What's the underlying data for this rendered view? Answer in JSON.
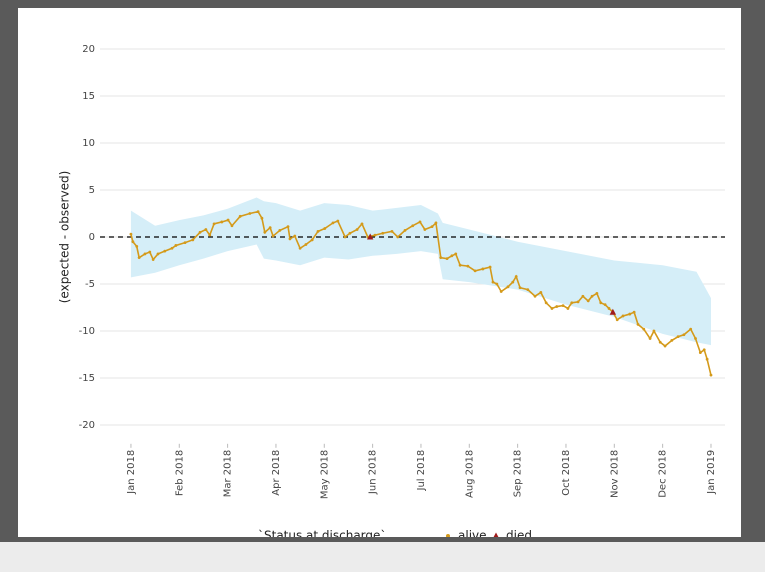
{
  "chart_data": {
    "type": "line",
    "y_label": "(expected - observed)",
    "xlim": [
      -0.64,
      12.29
    ],
    "ylim": [
      -22,
      21.5
    ],
    "grid": true,
    "xticks": [
      {
        "value": 0,
        "label": "Jan 2018"
      },
      {
        "value": 1,
        "label": "Feb 2018"
      },
      {
        "value": 2,
        "label": "Mar 2018"
      },
      {
        "value": 3,
        "label": "Apr 2018"
      },
      {
        "value": 4,
        "label": "May 2018"
      },
      {
        "value": 5,
        "label": "Jun 2018"
      },
      {
        "value": 6,
        "label": "Jul 2018"
      },
      {
        "value": 7,
        "label": "Aug 2018"
      },
      {
        "value": 8,
        "label": "Sep 2018"
      },
      {
        "value": 9,
        "label": "Oct 2018"
      },
      {
        "value": 10,
        "label": "Nov 2018"
      },
      {
        "value": 11,
        "label": "Dec 2018"
      },
      {
        "value": 12,
        "label": "Jan 2019"
      }
    ],
    "yticks": [
      -20,
      -15,
      -10,
      -5,
      0,
      5,
      10,
      15,
      20
    ],
    "reference_line": {
      "value": 0,
      "style": "dashed",
      "color": "#000000"
    },
    "band": {
      "color": "#d5eef8",
      "x": [
        0,
        0.5,
        1,
        1.5,
        2,
        2.6,
        2.75,
        3,
        3.5,
        4,
        4.5,
        5,
        5.5,
        6,
        6.35,
        6.45,
        7,
        8,
        9,
        10,
        11,
        11.7,
        12
      ],
      "upper": [
        2.8,
        1.2,
        1.8,
        2.3,
        3.0,
        4.2,
        3.8,
        3.6,
        2.8,
        3.6,
        3.4,
        2.8,
        3.1,
        3.4,
        2.5,
        1.5,
        0.8,
        -0.5,
        -1.5,
        -2.5,
        -3.0,
        -3.7,
        -6.5
      ],
      "lower": [
        -4.3,
        -3.8,
        -3.0,
        -2.3,
        -1.5,
        -0.8,
        -2.3,
        -2.5,
        -3.0,
        -2.2,
        -2.4,
        -2.0,
        -1.8,
        -1.5,
        -1.8,
        -4.5,
        -4.8,
        -5.6,
        -7.2,
        -8.5,
        -10.3,
        -11.2,
        -11.5
      ]
    },
    "legend": {
      "title": "`Status at discharge`",
      "position": "bottom"
    },
    "series": [
      {
        "name": "alive",
        "color": "#d49a1a",
        "marker": "circle",
        "x": [
          0,
          0.04,
          0.12,
          0.17,
          0.29,
          0.39,
          0.46,
          0.56,
          0.7,
          0.85,
          0.93,
          1.12,
          1.28,
          1.43,
          1.55,
          1.63,
          1.72,
          1.88,
          2.01,
          2.09,
          2.26,
          2.46,
          2.63,
          2.71,
          2.77,
          2.88,
          2.94,
          3.08,
          3.25,
          3.29,
          3.39,
          3.5,
          3.62,
          3.75,
          3.87,
          4.01,
          4.18,
          4.28,
          4.43,
          4.53,
          4.68,
          4.78,
          4.9,
          5.05,
          5.21,
          5.4,
          5.52,
          5.67,
          5.83,
          5.98,
          6.08,
          6.23,
          6.31,
          6.41,
          6.54,
          6.64,
          6.72,
          6.81,
          6.97,
          7.12,
          7.28,
          7.43,
          7.49,
          7.57,
          7.66,
          7.8,
          7.9,
          7.97,
          8.05,
          8.21,
          8.36,
          8.48,
          8.59,
          8.71,
          8.81,
          8.94,
          9.04,
          9.12,
          9.25,
          9.35,
          9.46,
          9.54,
          9.64,
          9.72,
          9.81,
          9.89,
          9.97,
          10.06,
          10.18,
          10.32,
          10.41,
          10.49,
          10.61,
          10.74,
          10.82,
          10.95,
          11.05,
          11.19,
          11.32,
          11.44,
          11.58,
          11.68,
          11.78,
          11.86,
          11.92,
          12.0
        ],
        "values": [
          0.3,
          -0.5,
          -1,
          -2.2,
          -1.8,
          -1.6,
          -2.4,
          -1.8,
          -1.5,
          -1.2,
          -0.9,
          -0.6,
          -0.3,
          0.5,
          0.8,
          0.2,
          1.4,
          1.6,
          1.8,
          1.2,
          2.2,
          2.5,
          2.7,
          2.0,
          0.5,
          1.0,
          0.1,
          0.7,
          1.1,
          -0.2,
          0.1,
          -1.2,
          -0.8,
          -0.3,
          0.6,
          0.9,
          1.5,
          1.7,
          0.0,
          0.4,
          0.8,
          1.4,
          0.0,
          0.2,
          0.4,
          0.6,
          0.0,
          0.7,
          1.2,
          1.6,
          0.8,
          1.1,
          1.5,
          -2.2,
          -2.3,
          -2.0,
          -1.8,
          -3.0,
          -3.1,
          -3.6,
          -3.4,
          -3.2,
          -4.8,
          -5.0,
          -5.8,
          -5.3,
          -4.8,
          -4.2,
          -5.4,
          -5.6,
          -6.3,
          -5.9,
          -7.0,
          -7.6,
          -7.4,
          -7.3,
          -7.6,
          -7.0,
          -6.9,
          -6.3,
          -6.8,
          -6.3,
          -6.0,
          -7.0,
          -7.2,
          -7.6,
          -8.0,
          -8.8,
          -8.4,
          -8.2,
          -8.0,
          -9.3,
          -9.8,
          -10.8,
          -10.0,
          -11.2,
          -11.6,
          -11.0,
          -10.6,
          -10.4,
          -9.8,
          -10.8,
          -12.3,
          -12.0,
          -13.0,
          -14.7
        ]
      },
      {
        "name": "died",
        "color": "#a01c1c",
        "marker": "triangle",
        "x": [
          4.95,
          9.97
        ],
        "values": [
          0.0,
          -8.0
        ]
      }
    ]
  }
}
